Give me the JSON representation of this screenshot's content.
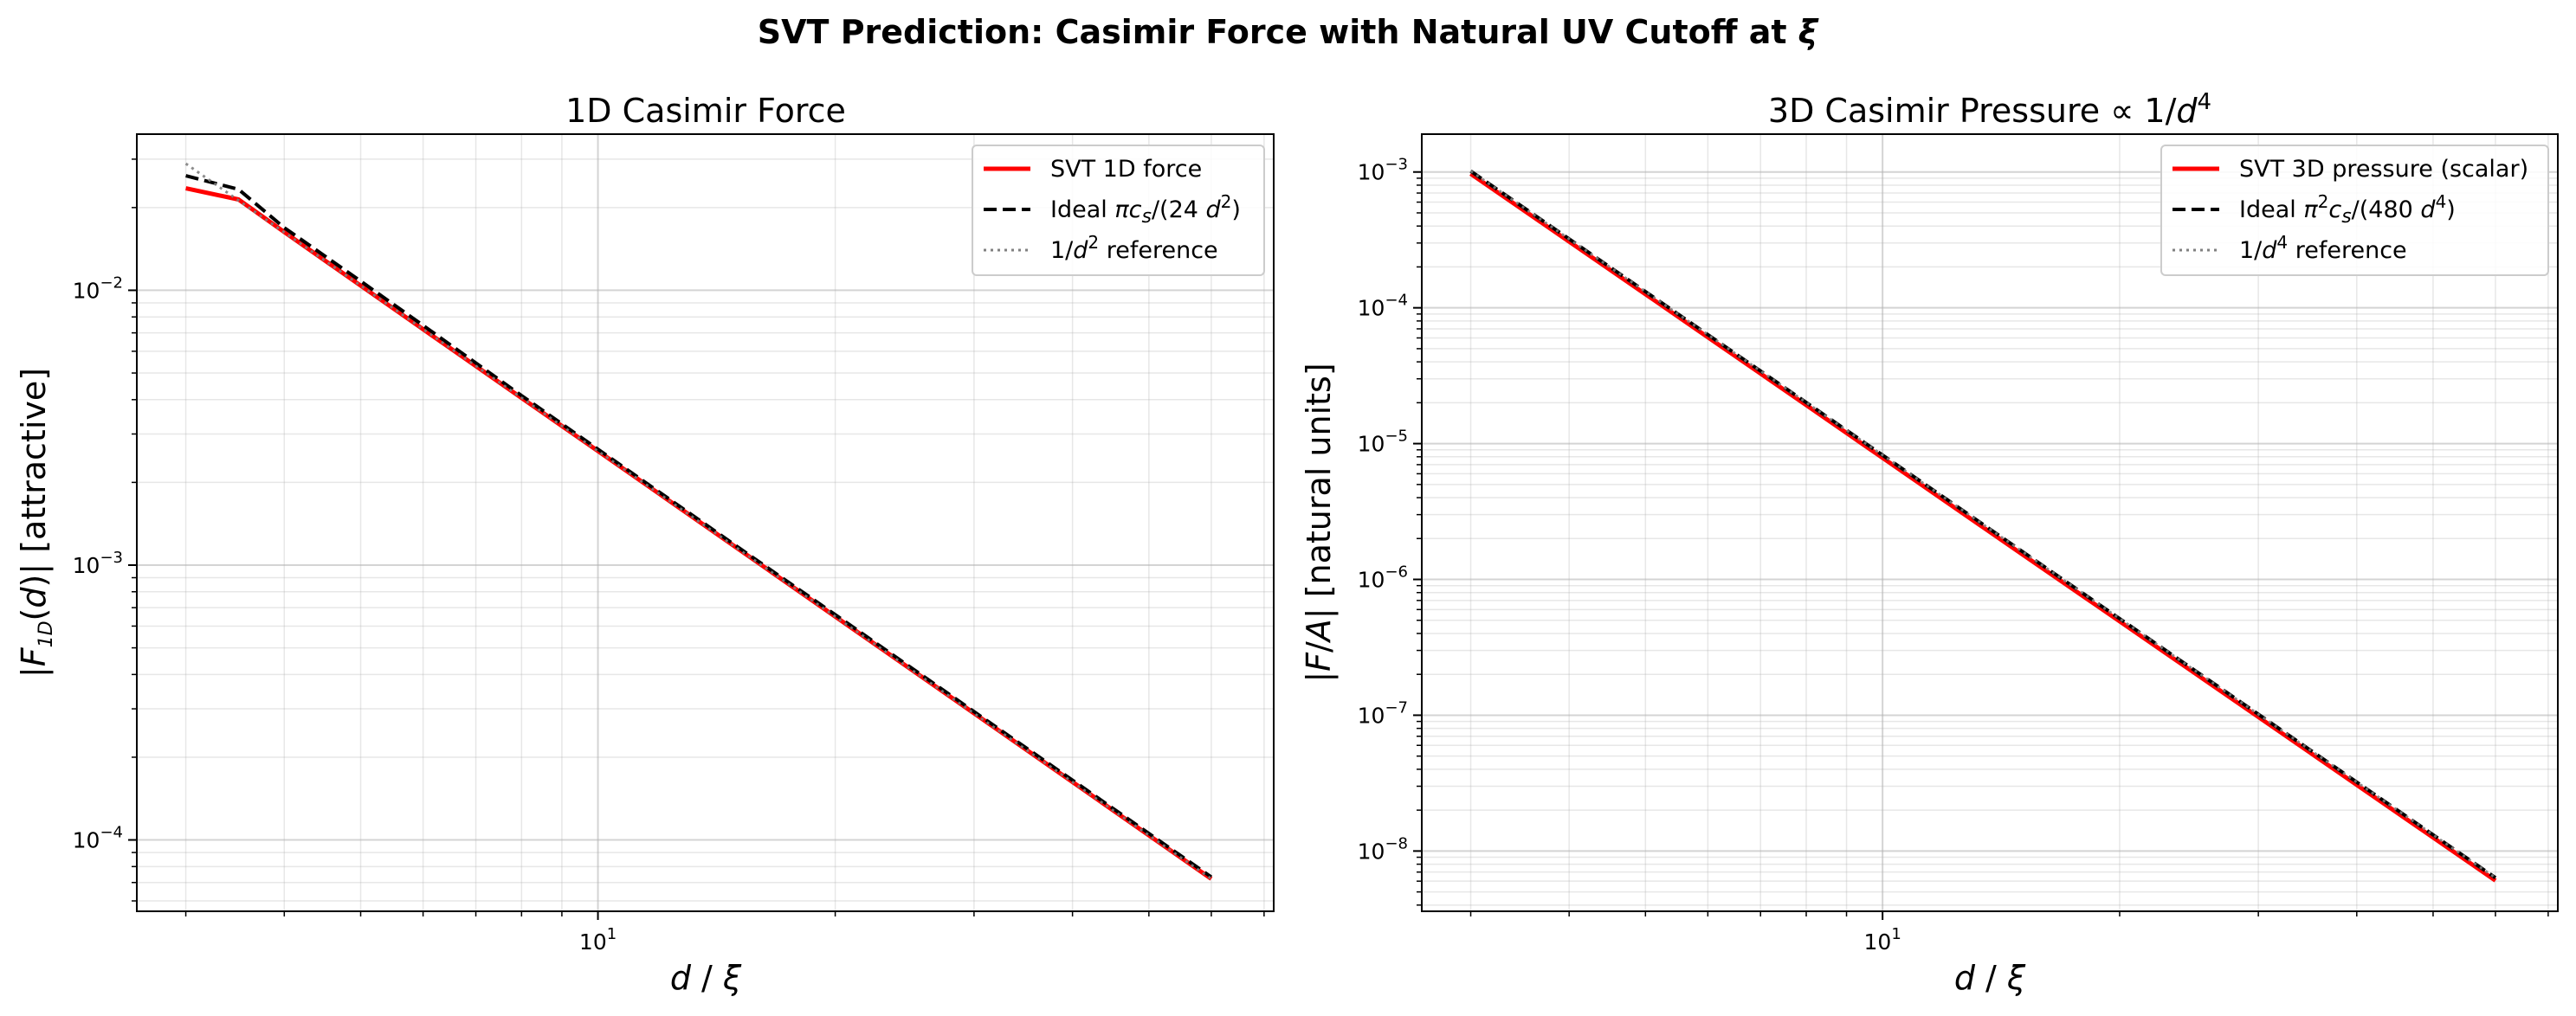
{
  "figure": {
    "suptitle_main": "SVT Prediction: Casimir Force with Natural UV Cutoff at ",
    "suptitle_symbol": "ξ"
  },
  "chart_data": [
    {
      "type": "line",
      "title": "1D Casimir Force",
      "xlabel": {
        "d": "d",
        "slash": " / ",
        "xi": "ξ"
      },
      "ylabel": {
        "open": "|",
        "F": "F",
        "sub": "1D",
        "arg": "(",
        "d": "d",
        "close": ")|",
        "rest": "  [attractive]"
      },
      "xscale": "log",
      "yscale": "log",
      "xlim": [
        2.6,
        72
      ],
      "ylim": [
        5.5e-05,
        0.037
      ],
      "grid": true,
      "legend_position": "top-right",
      "x_ticks": [
        {
          "value": 10,
          "base": "10",
          "exp": "1"
        }
      ],
      "y_ticks": [
        {
          "value": 0.01,
          "base": "10",
          "exp": "−2"
        },
        {
          "value": 0.001,
          "base": "10",
          "exp": "−3"
        },
        {
          "value": 0.0001,
          "base": "10",
          "exp": "−4"
        }
      ],
      "series": [
        {
          "name": "SVT 1D force",
          "color": "#ff0000",
          "style": "solid",
          "x": [
            3,
            3.5,
            4,
            5,
            6,
            8,
            10,
            15,
            20,
            30,
            40,
            60
          ],
          "y": [
            0.0235,
            0.0214,
            0.0163,
            0.0104,
            0.00722,
            0.00406,
            0.0026,
            0.001155,
            0.00065,
            0.000289,
            0.0001625,
            7.22e-05
          ]
        },
        {
          "name": "Ideal  πc_s/(24 d²)",
          "color": "#000000",
          "style": "dashed",
          "x": [
            3,
            3.5,
            4,
            5,
            6,
            8,
            10,
            15,
            20,
            30,
            40,
            60
          ],
          "y": [
            0.0261,
            0.0233,
            0.0169,
            0.0108,
            0.00745,
            0.00414,
            0.00264,
            0.00117,
            0.00066,
            0.000293,
            0.000165,
            7.33e-05
          ]
        },
        {
          "name": "1/d² reference",
          "color": "#808080",
          "style": "dotted",
          "x": [
            3,
            60
          ],
          "y": [
            0.0289,
            7.22e-05
          ]
        }
      ],
      "legend": [
        {
          "name": "SVT 1D force"
        },
        {
          "pre": "Ideal  ",
          "pi": "π",
          "c": "c",
          "cs": "s",
          "mid": "/(24 ",
          "d": "d",
          "exp": "2",
          "post": ")"
        },
        {
          "num": "1/",
          "d": "d",
          "exp": "2",
          "post": " reference"
        }
      ]
    },
    {
      "type": "line",
      "title": "3D Casimir Pressure  ∝ 1/d⁴",
      "title_parts": {
        "main": "3D Casimir Pressure  ",
        "prop": "∝ 1/",
        "d": "d",
        "exp": "4"
      },
      "xlabel": {
        "d": "d",
        "slash": " / ",
        "xi": "ξ"
      },
      "ylabel": {
        "open": "|",
        "F": "F",
        "slash": "/",
        "A": "A",
        "close": "|",
        "rest": "  [natural units]"
      },
      "xscale": "log",
      "yscale": "log",
      "xlim": [
        2.6,
        72
      ],
      "ylim": [
        3.6e-09,
        0.0019
      ],
      "grid": true,
      "legend_position": "top-right",
      "x_ticks": [
        {
          "value": 10,
          "base": "10",
          "exp": "1"
        }
      ],
      "y_ticks": [
        {
          "value": 0.001,
          "base": "10",
          "exp": "−3"
        },
        {
          "value": 0.0001,
          "base": "10",
          "exp": "−4"
        },
        {
          "value": 1e-05,
          "base": "10",
          "exp": "−5"
        },
        {
          "value": 1e-06,
          "base": "10",
          "exp": "−6"
        },
        {
          "value": 1e-07,
          "base": "10",
          "exp": "−7"
        },
        {
          "value": 1e-08,
          "base": "10",
          "exp": "−8"
        }
      ],
      "series": [
        {
          "name": "SVT 3D pressure (scalar)",
          "color": "#ff0000",
          "style": "solid",
          "x": [
            3,
            4,
            5,
            6,
            8,
            10,
            15,
            20,
            30,
            40,
            60
          ],
          "y": [
            0.00097,
            0.000307,
            0.000126,
            6.07e-05,
            1.92e-05,
            7.85e-06,
            1.55e-06,
            4.91e-07,
            9.7e-08,
            3.07e-08,
            6.06e-09
          ]
        },
        {
          "name": "Ideal  π²c_s/(480 d⁴)",
          "color": "#000000",
          "style": "dashed",
          "x": [
            3,
            60
          ],
          "y": [
            0.001015,
            6.35e-09
          ]
        },
        {
          "name": "1/d⁴ reference",
          "color": "#808080",
          "style": "dotted",
          "x": [
            3,
            60
          ],
          "y": [
            0.001015,
            6.35e-09
          ]
        }
      ],
      "legend": [
        {
          "name": "SVT 3D pressure (scalar)"
        },
        {
          "pre": "Ideal  ",
          "pi": "π",
          "piexp": "2",
          "c": "c",
          "cs": "s",
          "mid": "/(480 ",
          "d": "d",
          "exp": "4",
          "post": ")"
        },
        {
          "num": "1/",
          "d": "d",
          "exp": "4",
          "post": " reference"
        }
      ]
    }
  ]
}
